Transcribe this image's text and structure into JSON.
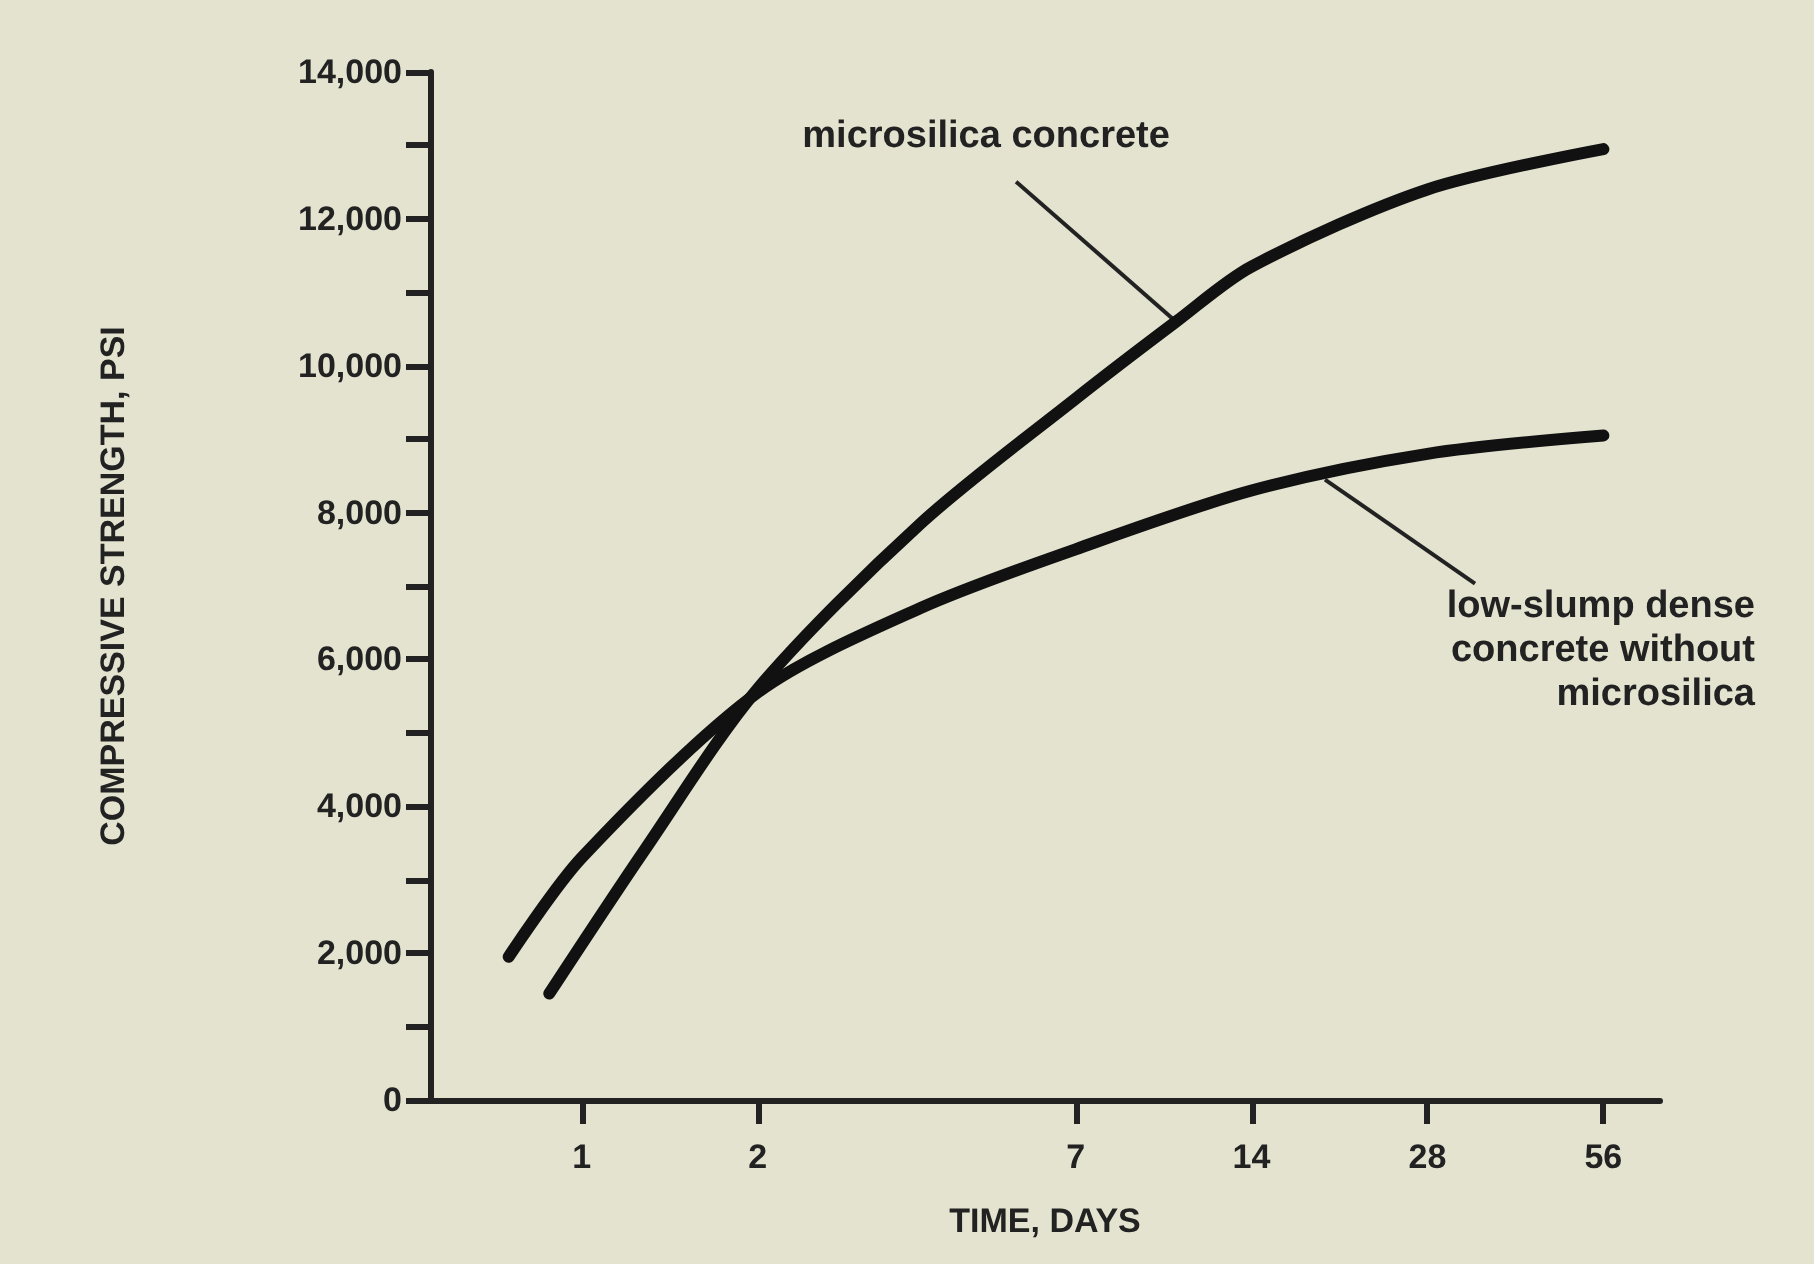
{
  "chart_data": {
    "type": "line",
    "xlabel": "TIME, DAYS",
    "ylabel": "COMPRESSIVE STRENGTH, PSI",
    "log": "x",
    "xlim": [
      0.55,
      70
    ],
    "xticks": [
      1,
      2,
      7,
      14,
      28,
      56
    ],
    "ylim": [
      0,
      14000
    ],
    "yticks": [
      {
        "value": 0,
        "label": "0"
      },
      {
        "value": 1000,
        "label": null
      },
      {
        "value": 2000,
        "label": "2,000"
      },
      {
        "value": 3000,
        "label": null
      },
      {
        "value": 4000,
        "label": "4,000"
      },
      {
        "value": 5000,
        "label": null
      },
      {
        "value": 6000,
        "label": "6,000"
      },
      {
        "value": 7000,
        "label": null
      },
      {
        "value": 8000,
        "label": "8,000"
      },
      {
        "value": 9000,
        "label": null
      },
      {
        "value": 10000,
        "label": "10,000"
      },
      {
        "value": 11000,
        "label": null
      },
      {
        "value": 12000,
        "label": "12,000"
      },
      {
        "value": 13000,
        "label": null
      },
      {
        "value": 14000,
        "label": "14,000"
      }
    ],
    "grid": false,
    "marker": "none",
    "line_style": "solid",
    "series": [
      {
        "color": "#111111",
        "x": [
          0.88,
          1.28,
          2,
          3.8,
          7,
          10.4,
          14,
          28,
          56
        ],
        "values": [
          1450,
          3400,
          5600,
          7850,
          9550,
          10600,
          11350,
          12400,
          12950
        ]
      },
      {
        "color": "#111111",
        "x": [
          0.75,
          1,
          2,
          3.8,
          7,
          14,
          28,
          56
        ],
        "values": [
          1950,
          3300,
          5550,
          6700,
          7500,
          8300,
          8800,
          9050
        ]
      }
    ],
    "annotations": [
      {
        "text": "microsilica concrete",
        "x": 10.4,
        "y": 10600
      },
      {
        "text": "low-slump dense\nconcrete without\nmicrosilica",
        "x": 18.7,
        "y": 8450
      }
    ]
  }
}
